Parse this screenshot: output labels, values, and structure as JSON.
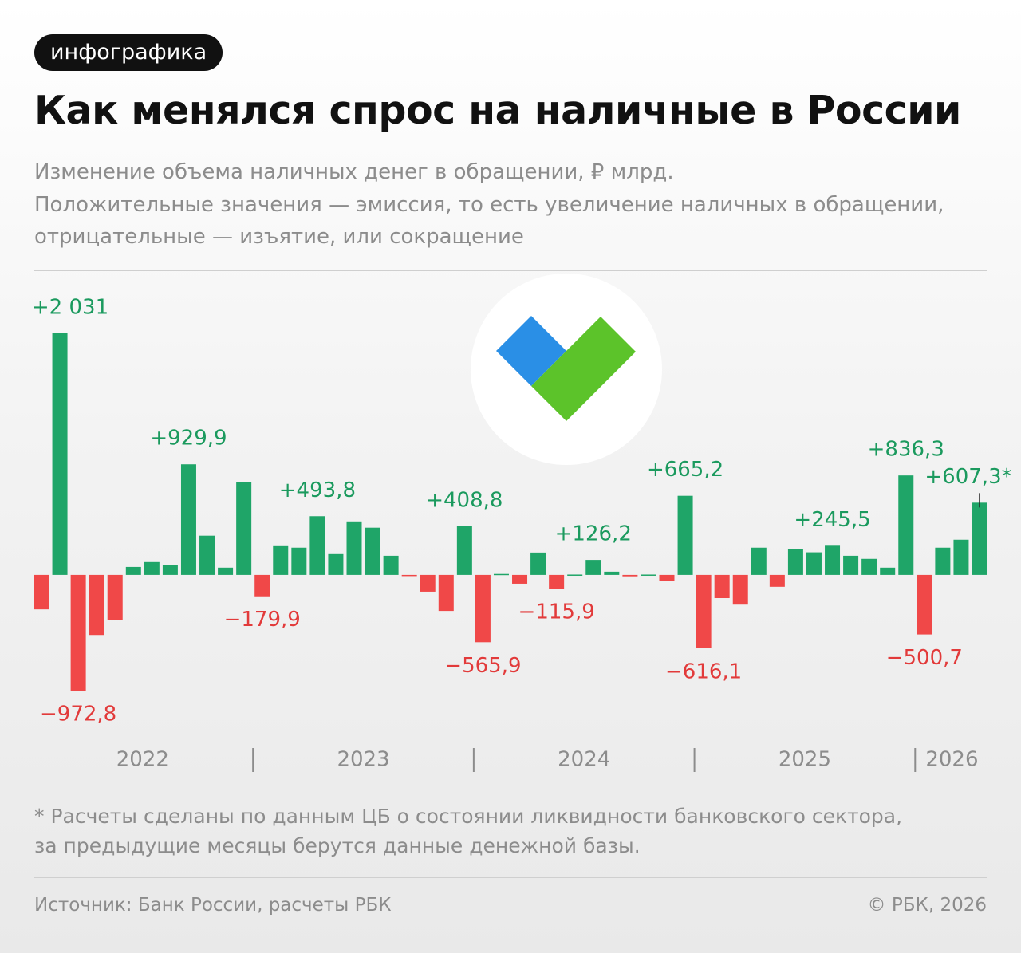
{
  "header": {
    "badge": "инфографика",
    "title": "Как менялся спрос на наличные в России",
    "subtitle": [
      "Изменение объема наличных денег в обращении, ₽ млрд.",
      "Положительные значения — эмиссия, то есть увеличение наличных в обращении,",
      "отрицательные — изъятие, или сокращение"
    ]
  },
  "chart_data": {
    "type": "bar",
    "categories": [
      "2022",
      "2022",
      "2022",
      "2022",
      "2022",
      "2022",
      "2022",
      "2022",
      "2022",
      "2022",
      "2022",
      "2022",
      "2023",
      "2023",
      "2023",
      "2023",
      "2023",
      "2023",
      "2023",
      "2023",
      "2023",
      "2023",
      "2023",
      "2023",
      "2024",
      "2024",
      "2024",
      "2024",
      "2024",
      "2024",
      "2024",
      "2024",
      "2024",
      "2024",
      "2024",
      "2024",
      "2025",
      "2025",
      "2025",
      "2025",
      "2025",
      "2025",
      "2025",
      "2025",
      "2025",
      "2025",
      "2025",
      "2025",
      "2026",
      "2026",
      "2026",
      "2026"
    ],
    "values": [
      -290,
      2031,
      -972.8,
      -505,
      -377,
      67,
      108,
      81,
      929.9,
      330,
      61,
      780,
      -179.9,
      242,
      229,
      493.8,
      175,
      450,
      397,
      161,
      -8,
      -141,
      -303,
      408.8,
      -565.9,
      8,
      -74,
      188,
      -115.9,
      3,
      126.2,
      27,
      -12,
      3,
      -50,
      665.2,
      -616.1,
      -195,
      -250,
      229,
      -100,
      215,
      190,
      245.5,
      161,
      135,
      61,
      836.3,
      -500.7,
      229,
      296,
      607.3
    ],
    "value_labels": [
      null,
      "+2 031",
      "−972,8",
      null,
      null,
      null,
      null,
      null,
      "+929,9",
      null,
      null,
      null,
      "−179,9",
      null,
      null,
      "+493,8",
      null,
      null,
      null,
      null,
      null,
      null,
      null,
      "+408,8",
      "−565,9",
      null,
      null,
      null,
      "−115,9",
      null,
      "+126,2",
      null,
      null,
      null,
      null,
      "+665,2",
      "−616,1",
      null,
      null,
      null,
      null,
      null,
      null,
      "+245,5",
      null,
      null,
      null,
      "+836,3",
      "−500,7",
      null,
      null,
      "+607,3*"
    ],
    "positive_color": "#1fa568",
    "negative_color": "#f04848",
    "positive_label_color": "#1b9a5e",
    "negative_label_color": "#e23a3a"
  },
  "footer": {
    "note": [
      "* Расчеты сделаны по данным ЦБ о состоянии ликвидности банковского сектора,",
      "за предыдущие месяцы берутся данные денежной базы."
    ],
    "source": "Источник: Банк России, расчеты РБК",
    "copyright": "© РБК, 2026"
  }
}
